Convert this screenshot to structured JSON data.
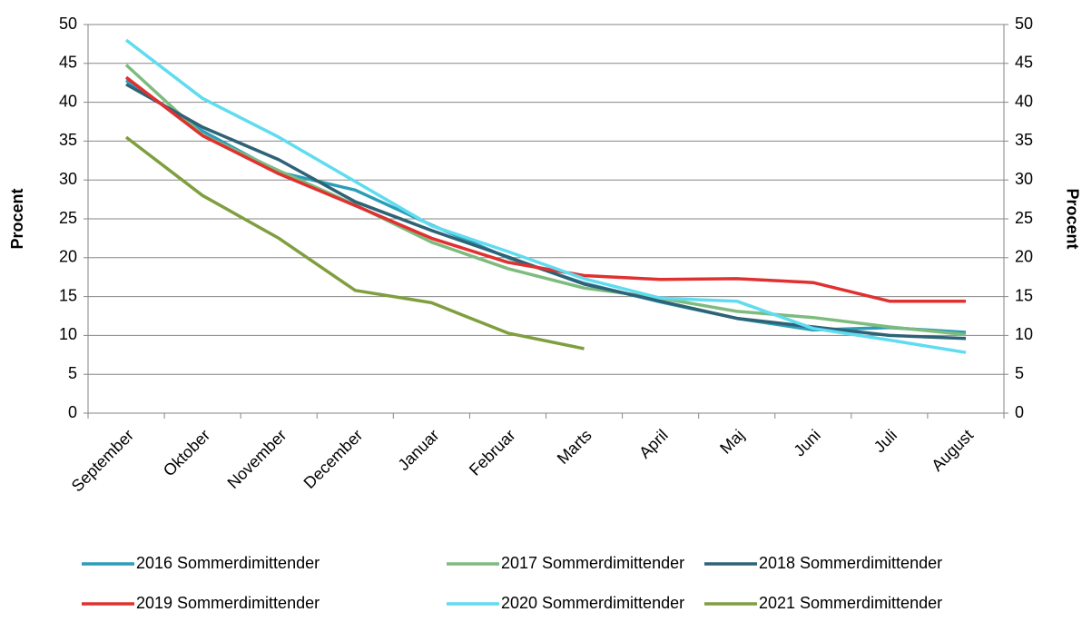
{
  "chart_data": {
    "type": "line",
    "y_label": "Procent",
    "y2_label": "Procent",
    "categories": [
      "September",
      "Oktober",
      "November",
      "December",
      "Januar",
      "Februar",
      "Marts",
      "April",
      "Maj",
      "Juni",
      "Juli",
      "August"
    ],
    "ylim": [
      0,
      50
    ],
    "yticks": [
      0,
      5,
      10,
      15,
      20,
      25,
      30,
      35,
      40,
      45,
      50
    ],
    "y2lim": [
      0,
      50
    ],
    "y2ticks": [
      0,
      5,
      10,
      15,
      20,
      25,
      30,
      35,
      40,
      45,
      50
    ],
    "grid": true,
    "legend": "bottom",
    "series": [
      {
        "name": "2016 Sommerdimittender",
        "color": "#2c9db7",
        "values": [
          42.8,
          36.3,
          31.0,
          28.7,
          24.2,
          20.0,
          16.7,
          14.3,
          12.2,
          10.7,
          11.0,
          10.4
        ]
      },
      {
        "name": "2017 Sommerdimittender",
        "color": "#7dbb7e",
        "values": [
          44.8,
          35.8,
          31.2,
          26.8,
          22.0,
          18.6,
          16.1,
          14.8,
          13.1,
          12.3,
          11.1,
          10.1
        ]
      },
      {
        "name": "2018 Sommerdimittender",
        "color": "#2e6276",
        "values": [
          42.3,
          36.8,
          32.6,
          27.2,
          23.5,
          20.1,
          16.6,
          14.4,
          12.2,
          11.1,
          10.0,
          9.6
        ]
      },
      {
        "name": "2019 Sommerdimittender",
        "color": "#e0302f",
        "values": [
          43.2,
          35.7,
          30.8,
          26.7,
          22.5,
          19.4,
          17.7,
          17.2,
          17.3,
          16.8,
          14.4,
          14.4
        ]
      },
      {
        "name": "2020 Sommerdimittender",
        "color": "#5fdcf0",
        "values": [
          48.0,
          40.5,
          35.5,
          29.8,
          24.1,
          20.8,
          17.3,
          14.8,
          14.4,
          10.9,
          9.4,
          7.8
        ]
      },
      {
        "name": "2021 Sommerdimittender",
        "color": "#7f9f3f",
        "values": [
          35.5,
          28.0,
          22.5,
          15.8,
          14.2,
          10.3,
          8.3,
          null,
          null,
          null,
          null,
          null
        ]
      }
    ]
  }
}
